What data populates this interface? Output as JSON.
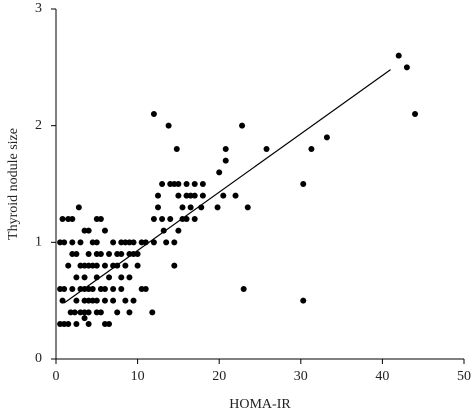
{
  "chart_data": {
    "type": "scatter",
    "xlabel": "HOMA-IR",
    "ylabel": "Thyroid nodule size",
    "xlim": [
      0,
      50
    ],
    "ylim": [
      0,
      3
    ],
    "xticks": [
      0,
      10,
      20,
      30,
      40,
      50
    ],
    "yticks": [
      0,
      1,
      2,
      3
    ],
    "grid": false,
    "color": "#000000",
    "x": [
      12,
      13.8,
      14.8,
      22.8,
      20.8,
      20.8,
      25.8,
      31.3,
      33.2,
      42,
      43,
      44,
      20,
      20.5,
      22,
      23.5,
      19.8,
      30.3,
      23,
      30.3,
      11.8,
      14.5,
      14.5,
      15,
      16,
      17,
      17.8,
      16.5,
      15.5,
      15,
      14,
      15,
      16,
      17,
      18,
      14.5,
      13,
      12.5,
      12.5,
      12,
      13,
      14,
      13.2,
      12,
      13.5,
      16.5,
      18,
      17,
      16,
      15.5,
      0.5,
      1,
      1.5,
      2.5,
      4,
      6,
      3.5,
      0.5,
      1,
      0.8,
      0.5,
      1,
      0.8,
      1.5,
      2.8,
      2,
      1.5,
      2,
      2.5,
      2,
      3,
      2.5,
      2,
      2.5,
      1.8,
      2.3,
      3,
      3.5,
      4,
      5,
      3.5,
      4,
      4.5,
      5,
      3,
      3.5,
      4,
      4.5,
      5.5,
      3.5,
      4,
      4.5,
      5,
      3.5,
      3,
      4,
      5,
      4.5,
      5,
      4,
      3.5,
      5,
      5.5,
      6,
      5.5,
      6,
      6.5,
      6,
      5,
      6,
      7,
      7.5,
      7,
      7,
      7.5,
      8,
      8,
      8.5,
      8.5,
      9,
      9.5,
      9,
      9,
      8,
      8.5,
      9.5,
      9,
      6.5,
      7,
      7.5,
      8,
      9.5,
      10,
      10.5,
      11,
      10.5,
      11,
      10,
      5.5,
      6.5
    ],
    "y": [
      2.1,
      2.0,
      1.8,
      2.0,
      1.8,
      1.7,
      1.8,
      1.8,
      1.9,
      2.6,
      2.5,
      2.1,
      1.6,
      1.4,
      1.4,
      1.3,
      1.3,
      1.5,
      0.6,
      0.5,
      0.4,
      0.8,
      1.0,
      1.1,
      1.2,
      1.2,
      1.3,
      1.3,
      1.3,
      1.4,
      1.5,
      1.5,
      1.5,
      1.5,
      1.5,
      1.5,
      1.5,
      1.4,
      1.3,
      1.2,
      1.2,
      1.2,
      1.1,
      1.0,
      1.0,
      1.4,
      1.4,
      1.4,
      1.4,
      1.2,
      0.3,
      0.3,
      0.3,
      0.3,
      0.3,
      0.3,
      0.35,
      0.6,
      0.6,
      0.5,
      1.0,
      1.0,
      1.2,
      1.2,
      1.3,
      1.2,
      0.8,
      0.9,
      0.9,
      1.0,
      1.0,
      0.7,
      0.6,
      0.5,
      0.4,
      0.4,
      0.4,
      0.4,
      0.4,
      0.4,
      0.5,
      0.5,
      0.5,
      0.5,
      0.6,
      0.6,
      0.6,
      0.6,
      0.6,
      0.7,
      0.8,
      0.8,
      0.8,
      0.8,
      0.8,
      0.9,
      0.9,
      1.0,
      1.0,
      1.1,
      1.1,
      1.2,
      1.2,
      1.1,
      0.9,
      0.8,
      0.7,
      0.6,
      0.7,
      0.5,
      0.5,
      0.4,
      0.6,
      0.8,
      0.9,
      0.9,
      1.0,
      1.0,
      0.8,
      0.9,
      0.9,
      1.0,
      0.7,
      0.6,
      0.5,
      0.5,
      0.4,
      0.9,
      1.0,
      0.8,
      0.7,
      1.0,
      0.9,
      1.0,
      1.0,
      0.6,
      0.6,
      0.8,
      0.4,
      0.3
    ],
    "trendline": {
      "x": [
        1,
        41
      ],
      "y": [
        0.48,
        2.48
      ]
    }
  }
}
